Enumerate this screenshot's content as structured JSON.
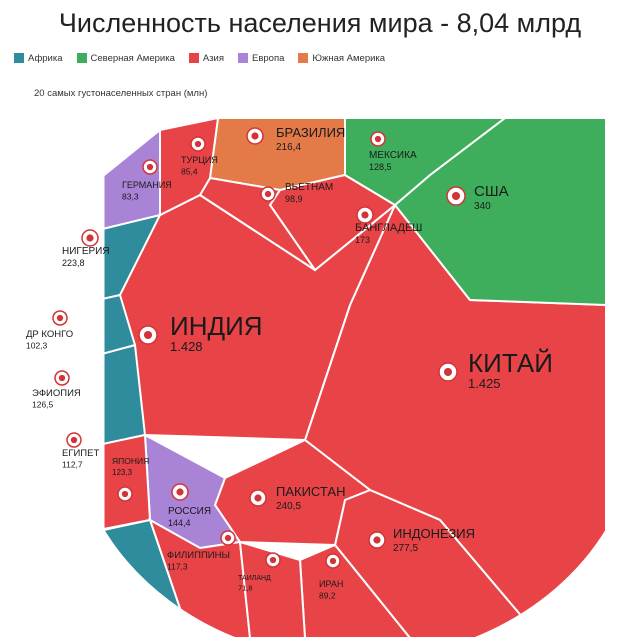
{
  "chart_data": {
    "type": "voronoi-treemap",
    "title": "Численность населения мира - 8,04 млрд",
    "subtitle": "20 самых густонаселенных стран (млн)",
    "legend": [
      {
        "name": "Африка",
        "color": "#2f8c9c"
      },
      {
        "name": "Северная Америка",
        "color": "#3fae5c"
      },
      {
        "name": "Азия",
        "color": "#e84448"
      },
      {
        "name": "Европа",
        "color": "#a883d6"
      },
      {
        "name": "Южная Америка",
        "color": "#e37a48"
      }
    ],
    "countries": [
      {
        "name": "КИТАЙ",
        "value": "1.425",
        "region": "Азия"
      },
      {
        "name": "ИНДИЯ",
        "value": "1.428",
        "region": "Азия"
      },
      {
        "name": "США",
        "value": "340",
        "region": "Северная Америка"
      },
      {
        "name": "ИНДОНЕЗИЯ",
        "value": "277,5",
        "region": "Азия"
      },
      {
        "name": "ПАКИСТАН",
        "value": "240,5",
        "region": "Азия"
      },
      {
        "name": "НИГЕРИЯ",
        "value": "223,8",
        "region": "Африка"
      },
      {
        "name": "БРАЗИЛИЯ",
        "value": "216,4",
        "region": "Южная Америка"
      },
      {
        "name": "БАНГЛАДЕШ",
        "value": "173",
        "region": "Азия"
      },
      {
        "name": "РОССИЯ",
        "value": "144,4",
        "region": "Европа"
      },
      {
        "name": "МЕКСИКА",
        "value": "128,5",
        "region": "Северная Америка"
      },
      {
        "name": "ЭФИОПИЯ",
        "value": "126,5",
        "region": "Африка"
      },
      {
        "name": "ЯПОНИЯ",
        "value": "123,3",
        "region": "Азия"
      },
      {
        "name": "ФИЛИППИНЫ",
        "value": "117,3",
        "region": "Азия"
      },
      {
        "name": "ЕГИПЕТ",
        "value": "112,7",
        "region": "Африка"
      },
      {
        "name": "ДР КОНГО",
        "value": "102,3",
        "region": "Африка"
      },
      {
        "name": "ВЬЕТНАМ",
        "value": "98,9",
        "region": "Азия"
      },
      {
        "name": "ИРАН",
        "value": "89,2",
        "region": "Азия"
      },
      {
        "name": "ТУРЦИЯ",
        "value": "85,4",
        "region": "Азия"
      },
      {
        "name": "ГЕРМАНИЯ",
        "value": "83,3",
        "region": "Европа"
      },
      {
        "name": "ТАИЛАНД",
        "value": "71,8",
        "region": "Азия"
      }
    ]
  }
}
